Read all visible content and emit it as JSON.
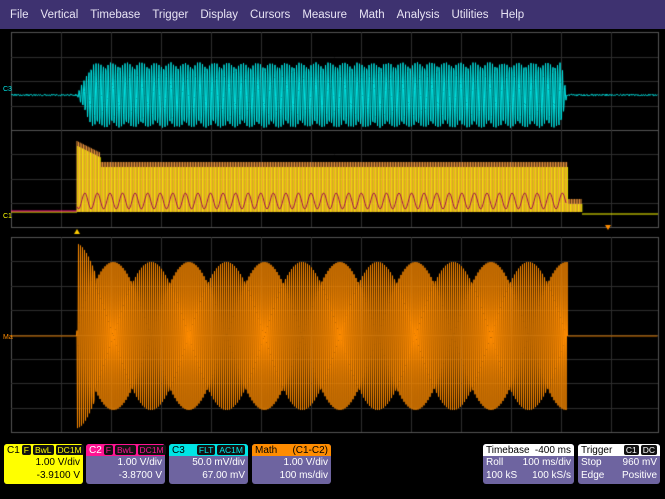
{
  "menu": [
    "File",
    "Vertical",
    "Timebase",
    "Trigger",
    "Display",
    "Cursors",
    "Measure",
    "Math",
    "Analysis",
    "Utilities",
    "Help"
  ],
  "trace_labels": {
    "c3": "C3",
    "c1": "C1",
    "math": "Ma"
  },
  "channels": [
    {
      "name": "C1",
      "tags": [
        "F",
        "BwL",
        "DC1M"
      ],
      "scale": "1.00 V/div",
      "offset": "-3.9100 V",
      "color": "#ffff00"
    },
    {
      "name": "C2",
      "tags": [
        "F",
        "BwL",
        "DC1M"
      ],
      "scale": "1.00 V/div",
      "offset": "-3.8700 V",
      "color": "#ff1493"
    },
    {
      "name": "C3",
      "tags": [
        "FLT",
        "AC1M"
      ],
      "scale": "50.0 mV/div",
      "offset": "67.00 mV",
      "color": "#00e5e5"
    },
    {
      "name": "Math",
      "expr": "(C1-C2)",
      "scale": "1.00 V/div",
      "offset": "100 ms/div",
      "color": "#ff8c00"
    }
  ],
  "timebase": {
    "label": "Timebase",
    "delay": "-400 ms",
    "mode": "Roll",
    "rate_div": "100 ms/div",
    "samples": "100 kS",
    "sample_rate": "100 kS/s"
  },
  "trigger": {
    "label": "Trigger",
    "source": "C1",
    "coupling": "DC",
    "state": "Stop",
    "level": "960 mV",
    "type": "Edge",
    "slope": "Positive"
  }
}
